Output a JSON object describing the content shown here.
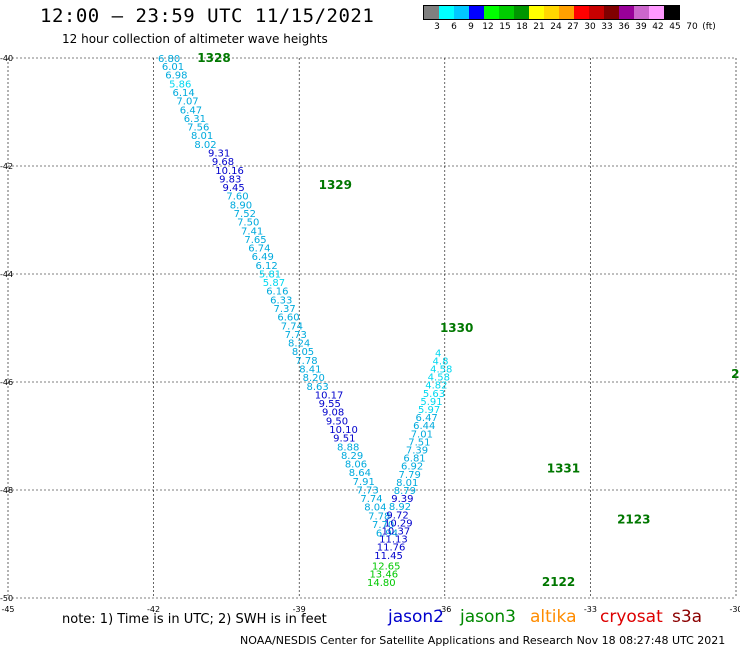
{
  "header": {
    "title": "12:00 — 23:59 UTC 11/15/2021",
    "subtitle": "12 hour collection of altimeter wave heights"
  },
  "legend": {
    "labels": [
      "3",
      "6",
      "9",
      "12",
      "15",
      "18",
      "21",
      "24",
      "27",
      "30",
      "33",
      "36",
      "39",
      "42",
      "45",
      "70",
      "(ft)"
    ],
    "colors": [
      "#7f7f7f",
      "#00ffff",
      "#00c8ff",
      "#0000ff",
      "#00ff00",
      "#00cc00",
      "#009600",
      "#ffff00",
      "#ffd700",
      "#ffa000",
      "#ff0000",
      "#c80000",
      "#800000",
      "#990099",
      "#cc66cc",
      "#ff99ff",
      "#000000"
    ]
  },
  "footer": {
    "note": "note: 1) Time is in UTC; 2) SWH is in feet",
    "missions": [
      {
        "name": "jason2",
        "color": "#0000cc"
      },
      {
        "name": "jason3",
        "color": "#008800"
      },
      {
        "name": "altika",
        "color": "#ff8c00"
      },
      {
        "name": "cryosat",
        "color": "#dd0000"
      },
      {
        "name": "s3a",
        "color": "#8b0000"
      }
    ],
    "credit": "NOAA/NESDIS Center for Satellite Applications and Research   Nov 18 08:27:48 UTC 2021"
  },
  "chart_data": {
    "type": "scatter",
    "xlim": [
      -45,
      -30
    ],
    "ylim": [
      -50,
      -40
    ],
    "x_ticks": [
      "-45",
      "-42",
      "-39",
      "-36",
      "-33",
      "-30"
    ],
    "y_ticks": [
      "-40",
      "-42",
      "-44",
      "-46",
      "-48",
      "-50"
    ],
    "passes": [
      {
        "label": "1328",
        "x": -41.1,
        "y": -40.0
      },
      {
        "label": "1329",
        "x": -38.6,
        "y": -42.35
      },
      {
        "label": "1330",
        "x": -36.1,
        "y": -45.0
      },
      {
        "label": "1331",
        "x": -33.9,
        "y": -47.6
      },
      {
        "label": "2122",
        "x": -34.0,
        "y": -49.7
      },
      {
        "label": "2123",
        "x": -32.45,
        "y": -48.55
      },
      {
        "label": "2",
        "x": -30.1,
        "y": -45.85
      }
    ],
    "series": [
      {
        "name": "track-1",
        "points": [
          {
            "x": -41.91,
            "y": -40.0,
            "v": "6.80"
          },
          {
            "x": -41.83,
            "y": -40.15,
            "v": "6.01"
          },
          {
            "x": -41.76,
            "y": -40.31,
            "v": "6.98"
          },
          {
            "x": -41.68,
            "y": -40.47,
            "v": "5.86"
          },
          {
            "x": -41.61,
            "y": -40.63,
            "v": "6.14"
          },
          {
            "x": -41.53,
            "y": -40.79,
            "v": "7.07"
          },
          {
            "x": -41.46,
            "y": -40.95,
            "v": "6.47"
          },
          {
            "x": -41.38,
            "y": -41.11,
            "v": "6.31"
          },
          {
            "x": -41.31,
            "y": -41.27,
            "v": "7.56"
          },
          {
            "x": -41.23,
            "y": -41.43,
            "v": "8.01"
          },
          {
            "x": -41.16,
            "y": -41.59,
            "v": "8.02"
          },
          {
            "x": -40.88,
            "y": -41.75,
            "v": "9.31"
          },
          {
            "x": -40.8,
            "y": -41.91,
            "v": "9.68"
          },
          {
            "x": -40.73,
            "y": -42.07,
            "v": "10.16"
          },
          {
            "x": -40.65,
            "y": -42.23,
            "v": "9.83"
          },
          {
            "x": -40.58,
            "y": -42.39,
            "v": "9.45"
          },
          {
            "x": -40.5,
            "y": -42.55,
            "v": "7.60"
          },
          {
            "x": -40.43,
            "y": -42.71,
            "v": "8.90"
          },
          {
            "x": -40.35,
            "y": -42.87,
            "v": "7.52"
          },
          {
            "x": -40.28,
            "y": -43.03,
            "v": "7.50"
          },
          {
            "x": -40.2,
            "y": -43.19,
            "v": "7.41"
          },
          {
            "x": -40.13,
            "y": -43.35,
            "v": "7.65"
          },
          {
            "x": -40.05,
            "y": -43.51,
            "v": "6.74"
          },
          {
            "x": -39.98,
            "y": -43.67,
            "v": "6.49"
          },
          {
            "x": -39.9,
            "y": -43.83,
            "v": "6.12"
          },
          {
            "x": -39.83,
            "y": -43.99,
            "v": "5.81"
          },
          {
            "x": -39.75,
            "y": -44.15,
            "v": "5.87"
          },
          {
            "x": -39.68,
            "y": -44.31,
            "v": "6.16"
          },
          {
            "x": -39.6,
            "y": -44.47,
            "v": "6.33"
          },
          {
            "x": -39.53,
            "y": -44.63,
            "v": "7.37"
          },
          {
            "x": -39.45,
            "y": -44.79,
            "v": "6.60"
          },
          {
            "x": -39.38,
            "y": -44.95,
            "v": "7.74"
          },
          {
            "x": -39.3,
            "y": -45.11,
            "v": "7.73"
          },
          {
            "x": -39.23,
            "y": -45.27,
            "v": "8.24"
          },
          {
            "x": -39.15,
            "y": -45.43,
            "v": "8.05"
          },
          {
            "x": -39.08,
            "y": -45.59,
            "v": "7.78"
          },
          {
            "x": -39.0,
            "y": -45.75,
            "v": "8.41"
          },
          {
            "x": -38.93,
            "y": -45.91,
            "v": "8.20"
          },
          {
            "x": -38.85,
            "y": -46.07,
            "v": "8.63"
          },
          {
            "x": -38.68,
            "y": -46.23,
            "v": "10.17"
          },
          {
            "x": -38.6,
            "y": -46.39,
            "v": "9.55"
          },
          {
            "x": -38.53,
            "y": -46.55,
            "v": "9.08"
          },
          {
            "x": -38.45,
            "y": -46.71,
            "v": "9.50"
          },
          {
            "x": -38.38,
            "y": -46.87,
            "v": "10.10"
          },
          {
            "x": -38.3,
            "y": -47.03,
            "v": "9.51"
          },
          {
            "x": -38.22,
            "y": -47.19,
            "v": "8.88"
          },
          {
            "x": -38.14,
            "y": -47.35,
            "v": "8.29"
          },
          {
            "x": -38.06,
            "y": -47.51,
            "v": "8.06"
          },
          {
            "x": -37.98,
            "y": -47.67,
            "v": "8.64"
          },
          {
            "x": -37.9,
            "y": -47.83,
            "v": "7.91"
          },
          {
            "x": -37.82,
            "y": -47.99,
            "v": "7.73"
          },
          {
            "x": -37.74,
            "y": -48.15,
            "v": "7.74"
          },
          {
            "x": -37.66,
            "y": -48.31,
            "v": "8.04"
          },
          {
            "x": -37.58,
            "y": -48.47,
            "v": "7.78"
          },
          {
            "x": -37.5,
            "y": -48.63,
            "v": "7.70"
          },
          {
            "x": -37.42,
            "y": -48.79,
            "v": "6.94"
          }
        ]
      },
      {
        "name": "track-2",
        "points": [
          {
            "x": -37.85,
            "y": -49.7,
            "v": "14.80"
          },
          {
            "x": -37.8,
            "y": -49.55,
            "v": "13.46"
          },
          {
            "x": -37.75,
            "y": -49.4,
            "v": "12.65"
          },
          {
            "x": -37.7,
            "y": -49.2,
            "v": "11.45"
          },
          {
            "x": -37.65,
            "y": -49.05,
            "v": "11.76"
          },
          {
            "x": -37.6,
            "y": -48.9,
            "v": "11.13"
          },
          {
            "x": -37.55,
            "y": -48.75,
            "v": "10.37"
          },
          {
            "x": -37.5,
            "y": -48.6,
            "v": "10.29"
          },
          {
            "x": -37.45,
            "y": -48.45,
            "v": "9.72"
          },
          {
            "x": -37.4,
            "y": -48.3,
            "v": "8.92"
          },
          {
            "x": -37.35,
            "y": -48.15,
            "v": "9.39"
          },
          {
            "x": -37.3,
            "y": -48.0,
            "v": "8.79"
          },
          {
            "x": -37.25,
            "y": -47.85,
            "v": "8.01"
          },
          {
            "x": -37.2,
            "y": -47.7,
            "v": "7.79"
          },
          {
            "x": -37.15,
            "y": -47.55,
            "v": "6.92"
          },
          {
            "x": -37.1,
            "y": -47.4,
            "v": "6.81"
          },
          {
            "x": -37.05,
            "y": -47.25,
            "v": "7.39"
          },
          {
            "x": -37.0,
            "y": -47.1,
            "v": "7.51"
          },
          {
            "x": -36.95,
            "y": -46.95,
            "v": "7.01"
          },
          {
            "x": -36.9,
            "y": -46.8,
            "v": "6.44"
          },
          {
            "x": -36.85,
            "y": -46.65,
            "v": "6.47"
          },
          {
            "x": -36.8,
            "y": -46.5,
            "v": "5.97"
          },
          {
            "x": -36.75,
            "y": -46.35,
            "v": "5.91"
          },
          {
            "x": -36.7,
            "y": -46.2,
            "v": "5.63"
          },
          {
            "x": -36.65,
            "y": -46.05,
            "v": "4.82"
          },
          {
            "x": -36.6,
            "y": -45.9,
            "v": "4.58"
          },
          {
            "x": -36.55,
            "y": -45.75,
            "v": "4.58"
          },
          {
            "x": -36.5,
            "y": -45.6,
            "v": "4.8"
          },
          {
            "x": -36.45,
            "y": -45.45,
            "v": "4"
          }
        ]
      }
    ]
  }
}
